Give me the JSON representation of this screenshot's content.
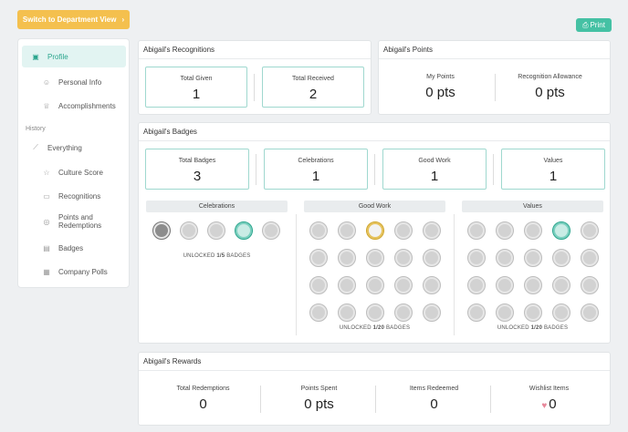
{
  "header": {
    "dept_button_label": "Switch to Department View",
    "print_label": "Print"
  },
  "sidebar": {
    "items": [
      {
        "label": "Profile",
        "icon": "id-card-icon",
        "active": true
      },
      {
        "label": "Personal Info",
        "icon": "person-icon"
      },
      {
        "label": "Accomplishments",
        "icon": "trophy-icon"
      }
    ],
    "history_heading": "History",
    "history_items": [
      {
        "label": "Everything",
        "icon": "chart-line-icon"
      },
      {
        "label": "Culture Score",
        "icon": "star-icon"
      },
      {
        "label": "Recognitions",
        "icon": "chat-icon"
      },
      {
        "label": "Points and Redemptions",
        "icon": "coins-icon"
      },
      {
        "label": "Badges",
        "icon": "badge-stack-icon"
      },
      {
        "label": "Company Polls",
        "icon": "poll-icon"
      }
    ]
  },
  "recognitions": {
    "title": "Abigail's Recognitions",
    "given_label": "Total Given",
    "given_value": "1",
    "received_label": "Total Received",
    "received_value": "2"
  },
  "points": {
    "title": "Abigail's Points",
    "my_label": "My Points",
    "my_value": "0 pts",
    "allowance_label": "Recognition Allowance",
    "allowance_value": "0 pts"
  },
  "badges": {
    "title": "Abigail's Badges",
    "stats": [
      {
        "label": "Total Badges",
        "value": "3"
      },
      {
        "label": "Celebrations",
        "value": "1"
      },
      {
        "label": "Good Work",
        "value": "1"
      },
      {
        "label": "Values",
        "value": "1"
      }
    ],
    "categories": [
      {
        "name": "Celebrations",
        "unlocked_prefix": "UNLOCKED ",
        "unlocked_count": "1/5",
        "unlocked_suffix": " BADGES"
      },
      {
        "name": "Good Work",
        "unlocked_prefix": "UNLOCKED ",
        "unlocked_count": "1/20",
        "unlocked_suffix": " BADGES"
      },
      {
        "name": "Values",
        "unlocked_prefix": "UNLOCKED ",
        "unlocked_count": "1/20",
        "unlocked_suffix": " BADGES"
      }
    ]
  },
  "rewards": {
    "title": "Abigail's Rewards",
    "stats": [
      {
        "label": "Total Redemptions",
        "value": "0"
      },
      {
        "label": "Points Spent",
        "value": "0 pts"
      },
      {
        "label": "Items Redeemed",
        "value": "0"
      },
      {
        "label": "Wishlist Items",
        "value": "0"
      }
    ]
  },
  "colors": {
    "accent": "#45c1a4",
    "dept_button": "#f4c04e",
    "heart": "#e7879a"
  }
}
